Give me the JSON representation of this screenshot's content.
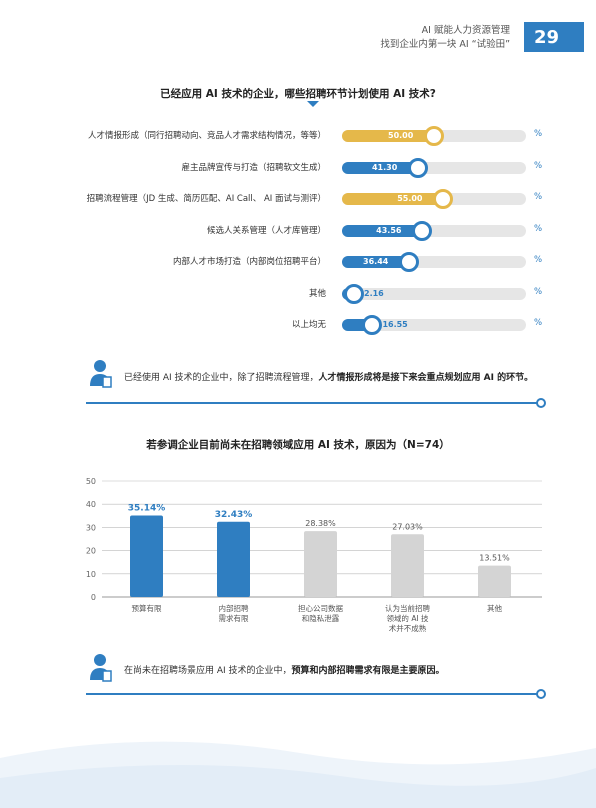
{
  "header": {
    "line1": "AI 赋能人力资源管理",
    "line2": "找到企业内第一块 AI “试验田”",
    "page_number": "29"
  },
  "colors": {
    "blue": "#2f7ec1",
    "gold": "#e5b84a",
    "gray_bar": "#d4d4d4",
    "track": "#e6e6e6"
  },
  "section1": {
    "title": "已经应用 AI 技术的企业，哪些招聘环节计划使用 AI 技术?",
    "pct_symbol": "%",
    "note_prefix": "已经使用 AI 技术的企业中，除了招聘流程管理，",
    "note_bold": "人才情报形成将是接下来会重点规划应用 AI 的环节。"
  },
  "section2": {
    "title": "若参调企业目前尚未在招聘领域应用 AI 技术，原因为（N=74）",
    "note_prefix": "在尚未在招聘场景应用 AI 技术的企业中，",
    "note_bold": "预算和内部招聘需求有限是主要原因。"
  },
  "chart_data": [
    {
      "type": "bar",
      "orientation": "horizontal",
      "title": "已经应用 AI 技术的企业，哪些招聘环节计划使用 AI 技术?",
      "categories": [
        "人才情报形成（同行招聘动向、竞品人才需求结构情况，等等）",
        "雇主品牌宣传与打造（招聘软文生成）",
        "招聘流程管理（JD 生成、简历匹配、AI Call、 AI 面试与测评）",
        "候选人关系管理（人才库管理）",
        "内部人才市场打造（内部岗位招聘平台）",
        "其他",
        "以上均无"
      ],
      "values": [
        50.0,
        41.3,
        55.0,
        43.56,
        36.44,
        2.16,
        16.55
      ],
      "value_labels": [
        "50.00",
        "41.30",
        "55.00",
        "43.56",
        "36.44",
        "2.16",
        "16.55"
      ],
      "highlight": [
        true,
        false,
        true,
        false,
        false,
        false,
        false
      ],
      "unit": "%",
      "xlim": [
        0,
        100
      ]
    },
    {
      "type": "bar",
      "orientation": "vertical",
      "title": "若参调企业目前尚未在招聘领域应用 AI 技术，原因为（N=74）",
      "categories": [
        "预算有限",
        "内部招聘需求有限",
        "担心公司数据和隐私泄露",
        "认为当前招聘领域的 AI 技术并不成熟",
        "其他"
      ],
      "category_lines": [
        [
          "预算有限"
        ],
        [
          "内部招聘",
          "需求有限"
        ],
        [
          "担心公司数据",
          "和隐私泄露"
        ],
        [
          "认为当前招聘",
          "领域的 AI 技",
          "术并不成熟"
        ],
        [
          "其他"
        ]
      ],
      "values": [
        35.14,
        32.43,
        28.38,
        27.03,
        13.51
      ],
      "value_labels": [
        "35.14%",
        "32.43%",
        "28.38%",
        "27.03%",
        "13.51%"
      ],
      "highlight": [
        true,
        true,
        false,
        false,
        false
      ],
      "ylim": [
        0,
        50
      ],
      "yticks": [
        "0",
        "10",
        "20",
        "30",
        "40",
        "50"
      ],
      "grid": true
    }
  ]
}
